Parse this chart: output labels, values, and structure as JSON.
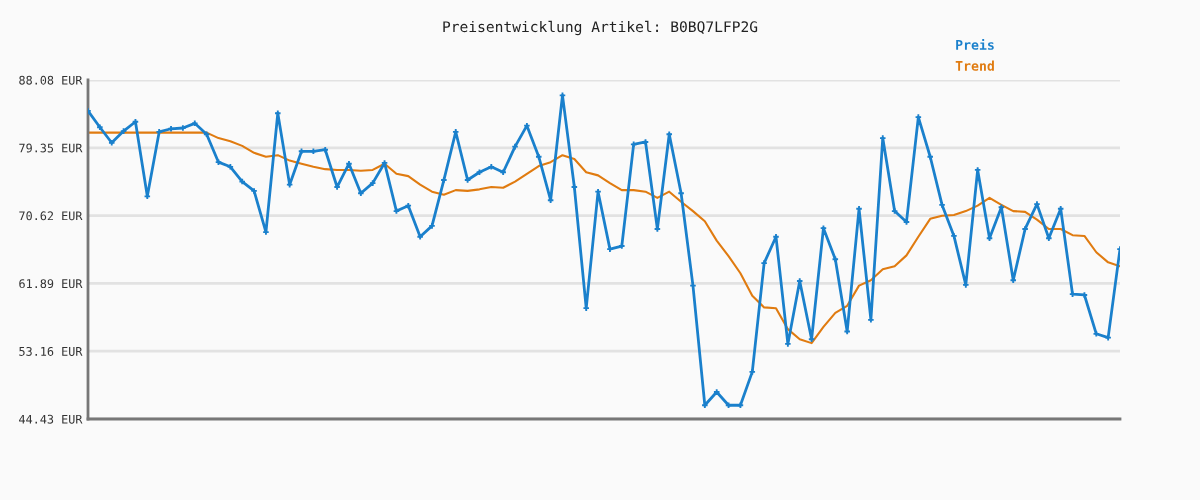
{
  "chart_data": {
    "type": "line",
    "title": "Preisentwicklung Artikel: B0BQ7LFP2G",
    "categories": [
      null,
      null,
      null,
      null,
      null,
      null,
      null,
      null,
      null,
      null,
      null,
      null,
      null,
      null,
      null,
      null,
      null,
      null,
      null,
      null,
      null,
      null,
      null,
      null,
      null,
      null,
      null,
      null,
      null,
      null,
      null,
      null,
      null,
      null,
      null,
      null,
      null,
      null,
      null,
      null,
      null,
      null,
      null,
      null,
      null,
      null,
      null,
      null,
      null,
      null,
      null,
      null,
      null,
      null,
      null,
      null,
      null,
      null,
      null,
      null,
      null,
      null,
      null,
      null,
      null,
      null,
      null,
      null,
      null,
      null,
      null,
      null,
      null,
      null,
      null,
      null,
      null,
      null,
      null,
      null,
      null,
      null,
      null,
      null,
      null,
      null,
      null,
      null
    ],
    "series": [
      {
        "name": "Preis",
        "color": "#1a80cc",
        "marker": "cross",
        "values": [
          84.1,
          82.0,
          80.0,
          81.5,
          82.7,
          73.1,
          81.4,
          81.8,
          81.9,
          82.5,
          81.1,
          77.5,
          76.9,
          75.0,
          73.8,
          68.5,
          83.8,
          74.6,
          78.9,
          78.9,
          79.1,
          74.3,
          77.3,
          73.5,
          74.8,
          77.4,
          71.2,
          71.9,
          67.9,
          69.3,
          75.2,
          81.4,
          75.2,
          76.2,
          76.9,
          76.2,
          79.5,
          82.2,
          78.2,
          72.6,
          86.1,
          74.3,
          58.7,
          73.7,
          66.3,
          66.7,
          79.8,
          80.1,
          68.9,
          81.1,
          73.5,
          61.6,
          46.2,
          47.9,
          46.2,
          46.2,
          50.5,
          64.5,
          67.9,
          54.1,
          62.2,
          54.7,
          69.0,
          65.0,
          55.7,
          71.5,
          57.2,
          80.6,
          71.2,
          69.8,
          83.3,
          78.2,
          72.0,
          68.0,
          61.7,
          76.5,
          67.7,
          71.7,
          62.3,
          68.9,
          72.1,
          67.7,
          71.5,
          60.5,
          60.4,
          55.4,
          54.9,
          66.3
        ]
      },
      {
        "name": "Trend",
        "color": "#e07b10",
        "marker": "none",
        "values": [
          81.3,
          81.3,
          81.3,
          81.3,
          81.3,
          81.3,
          81.3,
          81.3,
          81.3,
          81.3,
          81.3,
          80.6,
          80.2,
          79.6,
          78.7,
          78.2,
          78.4,
          77.7,
          77.3,
          76.9,
          76.6,
          76.5,
          76.5,
          76.4,
          76.5,
          77.3,
          76.0,
          75.7,
          74.6,
          73.7,
          73.3,
          73.9,
          73.8,
          74.0,
          74.3,
          74.2,
          75.0,
          76.0,
          77.0,
          77.5,
          78.4,
          77.9,
          76.2,
          75.8,
          74.8,
          73.9,
          73.9,
          73.7,
          72.9,
          73.7,
          72.4,
          71.2,
          69.9,
          67.4,
          65.4,
          63.2,
          60.3,
          58.8,
          58.7,
          56.0,
          54.7,
          54.2,
          56.3,
          58.1,
          59.0,
          61.6,
          62.3,
          63.7,
          64.1,
          65.5,
          67.9,
          70.2,
          70.6,
          70.7,
          71.2,
          71.9,
          72.9,
          72.0,
          71.2,
          71.1,
          70.1,
          68.9,
          68.9,
          68.1,
          68.0,
          65.9,
          64.6,
          64.1
        ]
      }
    ],
    "ylim": [
      44.43,
      88.08
    ],
    "yticks": [
      {
        "value": 44.43,
        "label": "44.43 EUR"
      },
      {
        "value": 53.16,
        "label": "53.16 EUR"
      },
      {
        "value": 61.89,
        "label": "61.89 EUR"
      },
      {
        "value": 70.62,
        "label": "70.62 EUR"
      },
      {
        "value": 79.35,
        "label": "79.35 EUR"
      },
      {
        "value": 88.08,
        "label": "88.08 EUR"
      }
    ],
    "grid": "y",
    "legend": "top right",
    "line_style": "solid",
    "tick_labels": "y"
  }
}
